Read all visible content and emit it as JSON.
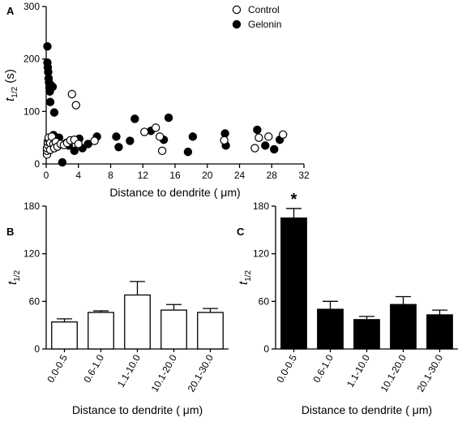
{
  "chart_data": [
    {
      "panel": "A",
      "type": "scatter",
      "xlabel": "Distance to dendrite ( μm)",
      "ylabel": "t1/2 (s)",
      "xlim": [
        0,
        32
      ],
      "ylim": [
        0,
        300
      ],
      "xticks": [
        0,
        4,
        8,
        12,
        16,
        20,
        24,
        28,
        32
      ],
      "yticks": [
        0,
        100,
        200,
        300
      ],
      "legend_position": "top-right",
      "series": [
        {
          "name": "Control",
          "marker": "open-circle",
          "points": [
            [
              0.1,
              18
            ],
            [
              0.1,
              25
            ],
            [
              0.1,
              30
            ],
            [
              0.2,
              36
            ],
            [
              0.2,
              42
            ],
            [
              0.3,
              47
            ],
            [
              0.3,
              50
            ],
            [
              0.5,
              27
            ],
            [
              0.5,
              40
            ],
            [
              0.7,
              52
            ],
            [
              0.9,
              38
            ],
            [
              1.0,
              30
            ],
            [
              1.2,
              42
            ],
            [
              1.4,
              33
            ],
            [
              1.8,
              38
            ],
            [
              2.2,
              36
            ],
            [
              2.6,
              40
            ],
            [
              3.0,
              45
            ],
            [
              3.2,
              133
            ],
            [
              3.5,
              46
            ],
            [
              3.7,
              112
            ],
            [
              4.0,
              38
            ],
            [
              6.0,
              44
            ],
            [
              12.2,
              61
            ],
            [
              13.6,
              69
            ],
            [
              14.1,
              52
            ],
            [
              14.4,
              25
            ],
            [
              22.1,
              45
            ],
            [
              25.9,
              30
            ],
            [
              26.4,
              50
            ],
            [
              27.6,
              52
            ],
            [
              29.4,
              56
            ]
          ]
        },
        {
          "name": "Gelonin",
          "marker": "filled-circle",
          "points": [
            [
              0.15,
              224
            ],
            [
              0.15,
              193
            ],
            [
              0.2,
              184
            ],
            [
              0.25,
              175
            ],
            [
              0.3,
              163
            ],
            [
              0.35,
              155
            ],
            [
              0.4,
              145
            ],
            [
              0.45,
              138
            ],
            [
              0.5,
              118
            ],
            [
              0.6,
              150
            ],
            [
              0.8,
              147
            ],
            [
              1.0,
              98
            ],
            [
              0.9,
              55
            ],
            [
              1.1,
              50
            ],
            [
              1.2,
              40
            ],
            [
              1.4,
              35
            ],
            [
              0.8,
              30
            ],
            [
              1.6,
              50
            ],
            [
              2.0,
              3
            ],
            [
              2.5,
              40
            ],
            [
              2.8,
              35
            ],
            [
              3.5,
              25
            ],
            [
              4.1,
              48
            ],
            [
              4.5,
              30
            ],
            [
              5.2,
              38
            ],
            [
              6.3,
              52
            ],
            [
              8.7,
              52
            ],
            [
              9.0,
              32
            ],
            [
              10.4,
              44
            ],
            [
              11.0,
              86
            ],
            [
              13.0,
              63
            ],
            [
              14.6,
              46
            ],
            [
              15.2,
              88
            ],
            [
              17.6,
              23
            ],
            [
              18.2,
              52
            ],
            [
              22.2,
              58
            ],
            [
              22.3,
              35
            ],
            [
              26.2,
              65
            ],
            [
              27.2,
              35
            ],
            [
              28.3,
              28
            ],
            [
              29.0,
              46
            ]
          ]
        }
      ]
    },
    {
      "panel": "B",
      "type": "bar",
      "bar_fill": "white",
      "xlabel": "Distance to dendrite ( μm)",
      "ylabel": "t1/2",
      "ylim": [
        0,
        180
      ],
      "yticks": [
        0,
        60,
        120,
        180
      ],
      "categories": [
        "0.0-0.5",
        "0.6-1.0",
        "1.1-10.0",
        "10.1-20.0",
        "20.1-30.0"
      ],
      "values": [
        34,
        46,
        68,
        49,
        46
      ],
      "errors": [
        4,
        2,
        17,
        7,
        5
      ]
    },
    {
      "panel": "C",
      "type": "bar",
      "bar_fill": "black",
      "xlabel": "Distance to dendrite ( μm)",
      "ylabel": "t1/2",
      "ylim": [
        0,
        180
      ],
      "yticks": [
        0,
        60,
        120,
        180
      ],
      "categories": [
        "0.0-0.5",
        "0.6-1.0",
        "1.1-10.0",
        "10.1-20.0",
        "20.1-30.0"
      ],
      "values": [
        165,
        50,
        37,
        56,
        43
      ],
      "errors": [
        12,
        10,
        4,
        10,
        6
      ],
      "annotation": {
        "text": "*",
        "category": "0.0-0.5"
      }
    }
  ]
}
